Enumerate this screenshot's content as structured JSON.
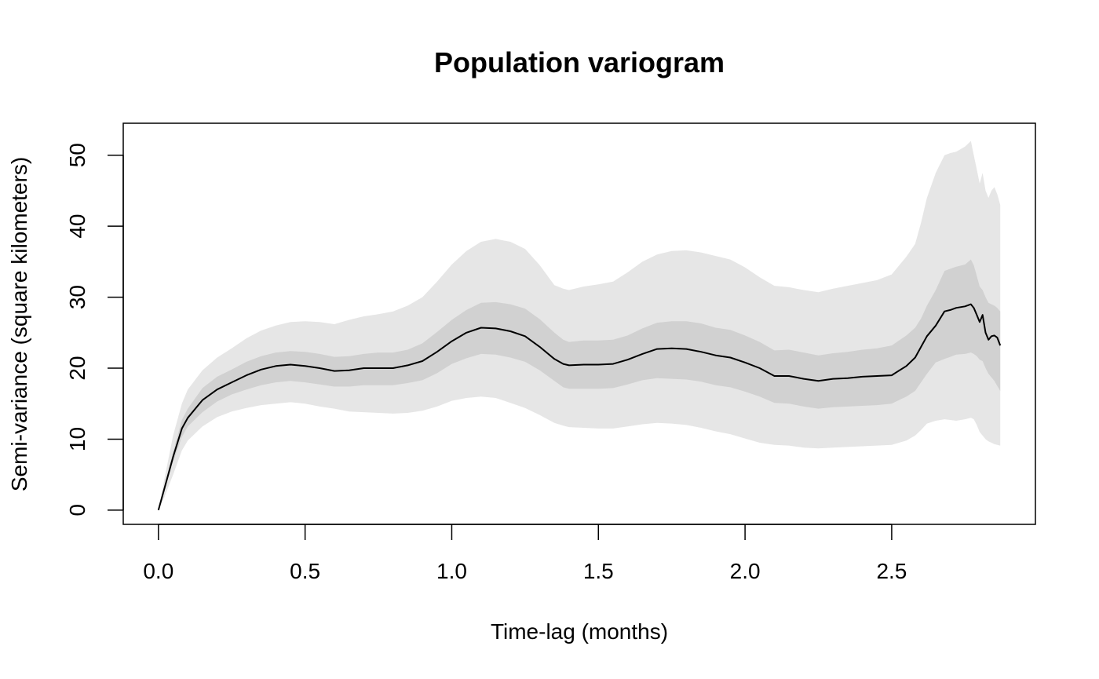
{
  "chart_data": {
    "type": "line",
    "title": "Population variogram",
    "xlabel": "Time-lag (months)",
    "ylabel": "Semi-variance (square kilometers)",
    "xlim": [
      -0.12,
      2.99
    ],
    "ylim": [
      -2,
      54.5
    ],
    "x_ticks": [
      0,
      0.5,
      1,
      1.5,
      2,
      2.5
    ],
    "x_tick_labels": [
      "0.0",
      "0.5",
      "1.0",
      "1.5",
      "2.0",
      "2.5"
    ],
    "y_ticks": [
      0,
      10,
      20,
      30,
      40,
      50
    ],
    "y_tick_labels": [
      "0",
      "10",
      "20",
      "30",
      "40",
      "50"
    ],
    "grid": false,
    "legend": "none",
    "colors": {
      "line": "#000000",
      "inner_band": "#d1d1d1",
      "outer_band": "#e6e6e6"
    },
    "series": [
      {
        "x": [
          0,
          0.02,
          0.05,
          0.08,
          0.1,
          0.15,
          0.2,
          0.25,
          0.3,
          0.35,
          0.4,
          0.45,
          0.5,
          0.55,
          0.6,
          0.65,
          0.7,
          0.75,
          0.8,
          0.85,
          0.9,
          0.95,
          1.0,
          1.05,
          1.1,
          1.15,
          1.2,
          1.25,
          1.3,
          1.35,
          1.38,
          1.4,
          1.45,
          1.5,
          1.55,
          1.6,
          1.65,
          1.7,
          1.75,
          1.8,
          1.85,
          1.9,
          1.95,
          2.0,
          2.05,
          2.1,
          2.15,
          2.2,
          2.25,
          2.3,
          2.35,
          2.4,
          2.45,
          2.5,
          2.55,
          2.58,
          2.6,
          2.62,
          2.65,
          2.68,
          2.7,
          2.72,
          2.75,
          2.77,
          2.78,
          2.79,
          2.8,
          2.81,
          2.82,
          2.83,
          2.84,
          2.85,
          2.86,
          2.87
        ],
        "y": [
          0,
          3.0,
          7.5,
          11.5,
          13.0,
          15.5,
          17.0,
          18.0,
          19.0,
          19.8,
          20.3,
          20.5,
          20.3,
          20.0,
          19.6,
          19.7,
          20.0,
          20.0,
          20.0,
          20.4,
          21.0,
          22.3,
          23.8,
          25.0,
          25.7,
          25.6,
          25.2,
          24.5,
          23.0,
          21.3,
          20.6,
          20.4,
          20.5,
          20.5,
          20.6,
          21.2,
          22.0,
          22.7,
          22.8,
          22.7,
          22.3,
          21.8,
          21.5,
          20.8,
          20.0,
          18.9,
          18.9,
          18.5,
          18.2,
          18.5,
          18.6,
          18.8,
          18.9,
          19.0,
          20.3,
          21.5,
          23.0,
          24.5,
          26.0,
          28.0,
          28.2,
          28.5,
          28.7,
          29.0,
          28.5,
          27.5,
          26.5,
          27.5,
          25.0,
          24.0,
          24.5,
          24.6,
          24.3,
          23.2
        ],
        "inner_lower": [
          0,
          2.7,
          6.8,
          10.3,
          11.8,
          13.8,
          15.3,
          16.3,
          17.0,
          17.6,
          18.0,
          18.2,
          18.0,
          17.7,
          17.4,
          17.4,
          17.6,
          17.6,
          17.6,
          17.9,
          18.3,
          19.3,
          20.6,
          21.4,
          22.0,
          21.9,
          21.5,
          20.9,
          19.7,
          18.2,
          17.3,
          17.1,
          17.1,
          17.1,
          17.2,
          17.7,
          18.3,
          18.6,
          18.5,
          18.4,
          18.1,
          17.6,
          17.3,
          16.7,
          16.0,
          15.1,
          15.0,
          14.6,
          14.3,
          14.5,
          14.6,
          14.7,
          14.8,
          15.0,
          16.0,
          16.8,
          18.0,
          19.2,
          20.8,
          21.3,
          21.6,
          21.9,
          22.0,
          22.2,
          22.0,
          21.7,
          21.2,
          21.0,
          20.0,
          19.2,
          18.7,
          18.2,
          17.5,
          16.8
        ],
        "inner_upper": [
          0,
          3.3,
          8.2,
          12.7,
          14.3,
          17.2,
          18.8,
          19.8,
          20.9,
          21.7,
          22.2,
          22.4,
          22.3,
          22.0,
          21.6,
          21.7,
          22.0,
          22.2,
          22.2,
          22.6,
          23.5,
          25.1,
          26.8,
          28.2,
          29.2,
          29.3,
          29.0,
          28.4,
          26.9,
          25.0,
          24.0,
          23.7,
          23.9,
          23.9,
          24.0,
          24.6,
          25.6,
          26.4,
          26.6,
          26.6,
          26.3,
          25.7,
          25.4,
          24.6,
          23.7,
          22.5,
          22.6,
          22.2,
          21.8,
          22.1,
          22.3,
          22.6,
          22.8,
          23.2,
          24.6,
          25.7,
          27.0,
          28.8,
          31.0,
          33.7,
          34.0,
          34.3,
          34.6,
          35.3,
          34.5,
          33.0,
          31.5,
          31.0,
          30.0,
          29.2,
          29.0,
          28.8,
          28.5,
          28.0
        ],
        "outer_lower": [
          0,
          1.8,
          5.0,
          8.4,
          9.8,
          11.8,
          13.1,
          13.9,
          14.4,
          14.8,
          15.0,
          15.2,
          15.0,
          14.6,
          14.3,
          13.9,
          13.8,
          13.7,
          13.6,
          13.7,
          14.0,
          14.6,
          15.4,
          15.8,
          16.0,
          15.8,
          15.1,
          14.4,
          13.4,
          12.3,
          11.9,
          11.7,
          11.6,
          11.5,
          11.5,
          11.8,
          12.1,
          12.3,
          12.2,
          12.0,
          11.6,
          11.1,
          10.7,
          10.1,
          9.5,
          9.2,
          9.1,
          8.8,
          8.7,
          8.8,
          8.9,
          9.0,
          9.1,
          9.2,
          9.8,
          10.5,
          11.3,
          12.2,
          12.6,
          12.8,
          12.7,
          12.6,
          12.8,
          13.0,
          12.8,
          12.0,
          11.0,
          10.5,
          10.0,
          9.7,
          9.5,
          9.3,
          9.2,
          9.1
        ],
        "outer_upper": [
          0,
          4.3,
          10.5,
          15.0,
          17.0,
          19.7,
          21.5,
          22.8,
          24.2,
          25.3,
          26.0,
          26.5,
          26.6,
          26.5,
          26.2,
          26.8,
          27.3,
          27.6,
          28.0,
          28.8,
          30.0,
          32.2,
          34.6,
          36.5,
          37.8,
          38.2,
          37.8,
          36.8,
          34.5,
          31.7,
          31.2,
          31.0,
          31.5,
          31.8,
          32.2,
          33.5,
          35.0,
          36.0,
          36.5,
          36.6,
          36.3,
          35.8,
          35.3,
          34.2,
          32.8,
          31.6,
          31.4,
          31.0,
          30.7,
          31.2,
          31.6,
          32.0,
          32.4,
          33.2,
          35.7,
          37.5,
          40.5,
          44.0,
          47.5,
          50.0,
          50.3,
          50.5,
          51.2,
          52.0,
          50.0,
          48.0,
          46.0,
          47.5,
          45.0,
          44.0,
          45.0,
          45.5,
          44.5,
          43.0
        ]
      }
    ]
  }
}
